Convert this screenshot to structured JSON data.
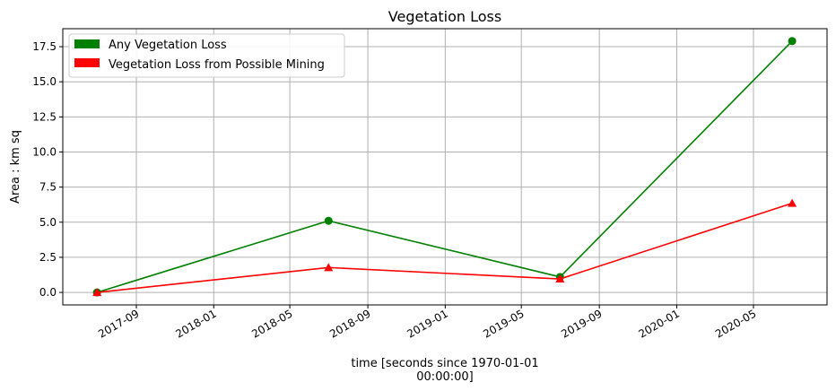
{
  "chart_data": {
    "type": "line",
    "title": "Vegetation Loss",
    "xlabel_lines": [
      "time [seconds since 1970-01-01",
      "00:00:00]"
    ],
    "ylabel": "Area : km sq",
    "x": [
      "2017-07-01",
      "2018-07-01",
      "2019-07-01",
      "2020-07-01"
    ],
    "xlim": [
      "2017-05-08",
      "2020-08-25"
    ],
    "ylim": [
      -0.89,
      18.78
    ],
    "xticks": [
      "2017-09",
      "2018-01",
      "2018-05",
      "2018-09",
      "2019-01",
      "2019-05",
      "2019-09",
      "2020-01",
      "2020-05"
    ],
    "yticks": [
      "0.0",
      "2.5",
      "5.0",
      "7.5",
      "10.0",
      "12.5",
      "15.0",
      "17.5"
    ],
    "grid": true,
    "legend_position": "top-left",
    "series": [
      {
        "name": "Any Vegetation Loss",
        "color": "#008000",
        "marker": "circle",
        "values": [
          0.0,
          5.1,
          1.1,
          17.9
        ]
      },
      {
        "name": "Vegetation Loss from Possible Mining",
        "color": "#ff0000",
        "marker": "triangle",
        "values": [
          0.0,
          1.77,
          0.96,
          6.35
        ]
      }
    ]
  }
}
